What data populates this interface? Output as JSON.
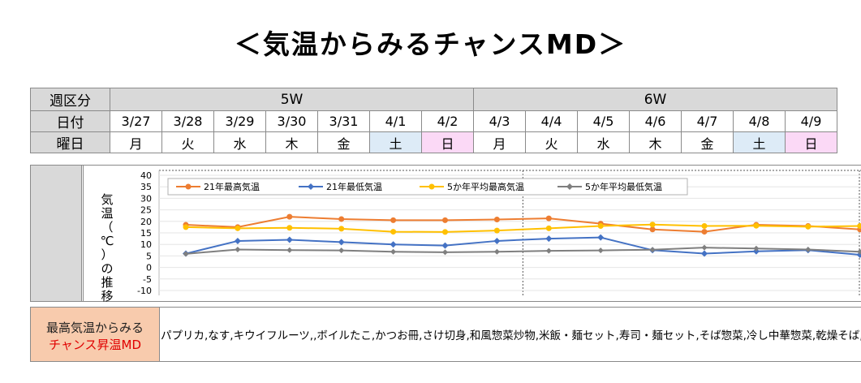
{
  "title": "＜気温からみるチャンスMD＞",
  "table": {
    "row_labels": [
      "週区分",
      "日付",
      "曜日"
    ],
    "weeks": [
      "5W",
      "6W"
    ],
    "dates": [
      "3/27",
      "3/28",
      "3/29",
      "3/30",
      "3/31",
      "4/1",
      "4/2",
      "4/3",
      "4/4",
      "4/5",
      "4/6",
      "4/7",
      "4/8",
      "4/9"
    ],
    "days": [
      "月",
      "火",
      "水",
      "木",
      "金",
      "土",
      "日",
      "月",
      "火",
      "水",
      "木",
      "金",
      "土",
      "日"
    ],
    "colors": {
      "saturday": "#ddebf7",
      "sunday": "#fbd9f6",
      "header": "#d9d9d9"
    }
  },
  "chart_data": {
    "type": "line",
    "ylabel": "気温（℃）の推移",
    "ylim": [
      -10,
      40
    ],
    "yticks": [
      40,
      35,
      30,
      25,
      20,
      15,
      10,
      5,
      0,
      -5,
      -10
    ],
    "x": [
      "3/27",
      "3/28",
      "3/29",
      "3/30",
      "3/31",
      "4/1",
      "4/2",
      "4/3",
      "4/4",
      "4/5",
      "4/6",
      "4/7",
      "4/8",
      "4/9"
    ],
    "legend_position": "top",
    "series": [
      {
        "name": "21年最高気温",
        "color": "#ed7d31",
        "values": [
          18.5,
          17.5,
          22,
          21,
          20.5,
          20.5,
          20.8,
          21.3,
          19,
          16.5,
          15.5,
          18.5,
          18,
          16.5
        ]
      },
      {
        "name": "21年最低気温",
        "color": "#4472c4",
        "values": [
          6,
          11.5,
          12,
          11,
          10,
          9.5,
          11.5,
          12.5,
          13,
          7.5,
          6,
          7,
          7.5,
          5.5
        ]
      },
      {
        "name": "5か年平均最高気温",
        "color": "#ffc000",
        "values": [
          17.5,
          17,
          17.2,
          16.8,
          15.5,
          15.4,
          16,
          17,
          18,
          18.6,
          18,
          18.1,
          17.7,
          18
        ]
      },
      {
        "name": "5か年平均最低気温",
        "color": "#7f7f7f",
        "values": [
          5.9,
          7.8,
          7.5,
          7.4,
          6.8,
          6.6,
          6.8,
          7.2,
          7.4,
          7.7,
          8.6,
          8.2,
          7.8,
          6.8
        ]
      }
    ]
  },
  "md": {
    "label_line1": "最高気温からみる",
    "label_line2": "チャンス昇温MD",
    "items": "パプリカ,なす,キウイフルーツ,,ボイルたこ,かつお冊,さけ切身,和風惣菜炒物,米飯・麺セット,寿司・麺セット,そば惣菜,冷し中華惣菜,乾燥そば,畜産加"
  }
}
